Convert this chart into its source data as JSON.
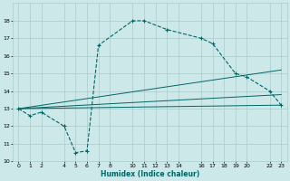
{
  "xlabel": "Humidex (Indice chaleur)",
  "background_color": "#cce8e8",
  "grid_color": "#aacccc",
  "line_color": "#006666",
  "xlim": [
    -0.5,
    23.5
  ],
  "ylim": [
    10,
    19
  ],
  "yticks": [
    10,
    11,
    12,
    13,
    14,
    15,
    16,
    17,
    18
  ],
  "xticks": [
    0,
    1,
    2,
    4,
    5,
    6,
    7,
    8,
    10,
    11,
    12,
    13,
    14,
    16,
    17,
    18,
    19,
    20,
    22,
    23
  ],
  "main_line_x": [
    0,
    1,
    2,
    4,
    5,
    6,
    7,
    10,
    11,
    13,
    16,
    17,
    19,
    20,
    22,
    23
  ],
  "main_line_y": [
    13.0,
    12.6,
    12.8,
    12.0,
    10.5,
    10.6,
    16.6,
    18.0,
    18.0,
    17.5,
    17.0,
    16.7,
    15.0,
    14.8,
    14.0,
    13.2
  ],
  "line2_x": [
    0,
    23
  ],
  "line2_y": [
    13.0,
    13.2
  ],
  "line3_x": [
    0,
    23
  ],
  "line3_y": [
    13.0,
    15.2
  ],
  "line4_x": [
    0,
    23
  ],
  "line4_y": [
    13.0,
    13.8
  ]
}
